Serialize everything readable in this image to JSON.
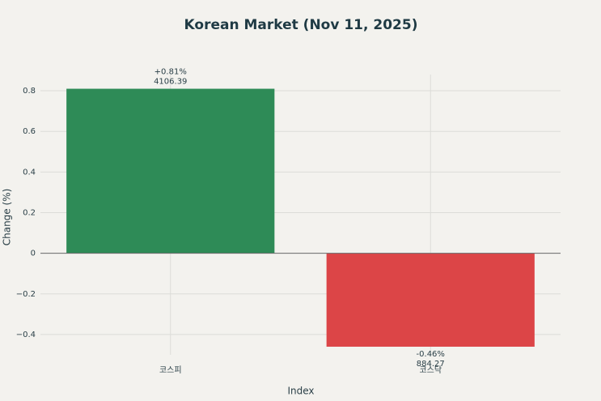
{
  "chart_data": {
    "type": "bar",
    "title": "Korean Market (Nov 11, 2025)",
    "x_label": "Index",
    "y_label": "Change (%)",
    "categories": [
      "코스피",
      "코스닥"
    ],
    "values": [
      0.81,
      -0.46
    ],
    "value_labels": [
      "+0.81%",
      "-0.46%"
    ],
    "index_levels": [
      4106.39,
      884.27
    ],
    "colors": [
      "#2e8b57",
      "#dc4547"
    ],
    "ylim": [
      -0.5,
      0.88
    ],
    "yticks": [
      {
        "value": -0.4,
        "label": "−0.4"
      },
      {
        "value": -0.2,
        "label": "−0.2"
      },
      0,
      0.2,
      0.4,
      0.6,
      0.8
    ],
    "grid": true
  }
}
